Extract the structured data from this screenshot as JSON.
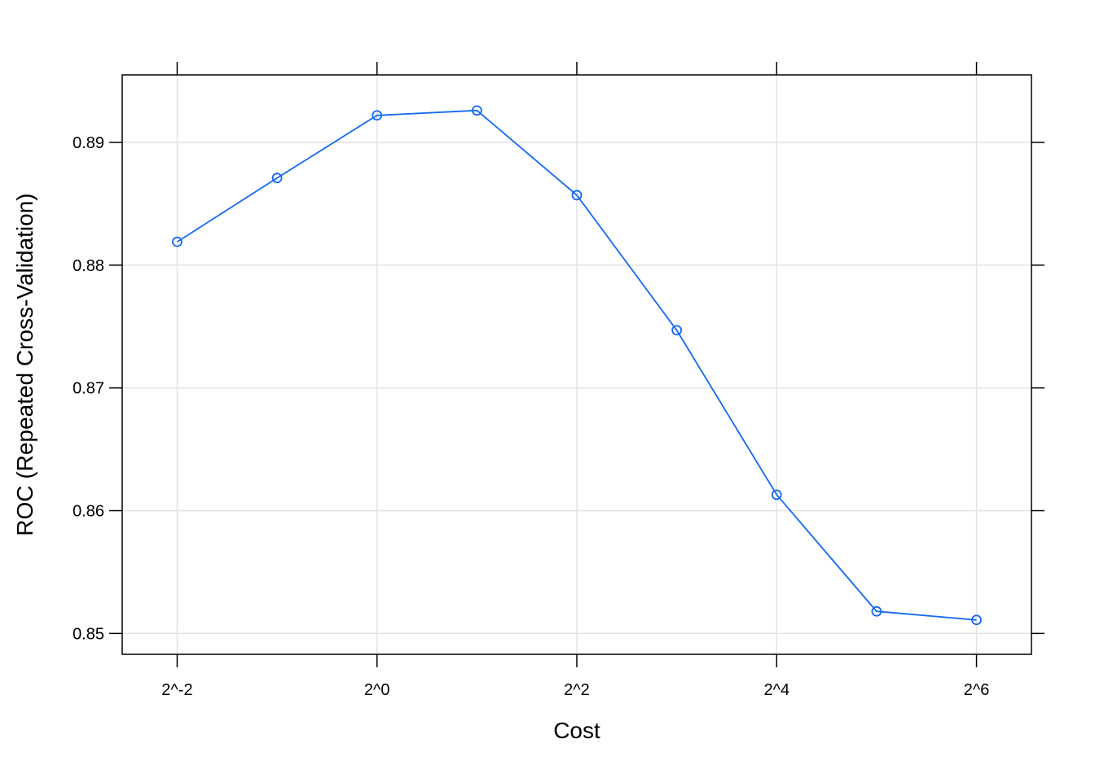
{
  "chart_data": {
    "type": "line",
    "xlabel": "Cost",
    "ylabel": "ROC (Repeated Cross-Validation)",
    "x_scale": "log2",
    "x_exponents": [
      -2,
      -1,
      0,
      1,
      2,
      3,
      4,
      5,
      6
    ],
    "x_ticks": [
      {
        "exp": -2,
        "label": "2^-2"
      },
      {
        "exp": 0,
        "label": "2^0"
      },
      {
        "exp": 2,
        "label": "2^2"
      },
      {
        "exp": 4,
        "label": "2^4"
      },
      {
        "exp": 6,
        "label": "2^6"
      }
    ],
    "y_ticks": [
      {
        "value": 0.85,
        "label": "0.85"
      },
      {
        "value": 0.86,
        "label": "0.86"
      },
      {
        "value": 0.87,
        "label": "0.87"
      },
      {
        "value": 0.88,
        "label": "0.88"
      },
      {
        "value": 0.89,
        "label": "0.89"
      }
    ],
    "xlim_exp": [
      -2.55,
      6.55
    ],
    "ylim": [
      0.8483,
      0.8955
    ],
    "grid": true,
    "series": [
      {
        "color": "#1469f0",
        "values": [
          0.8819,
          0.8871,
          0.8922,
          0.8926,
          0.8857,
          0.8747,
          0.8613,
          0.8518,
          0.8511
        ]
      }
    ]
  }
}
